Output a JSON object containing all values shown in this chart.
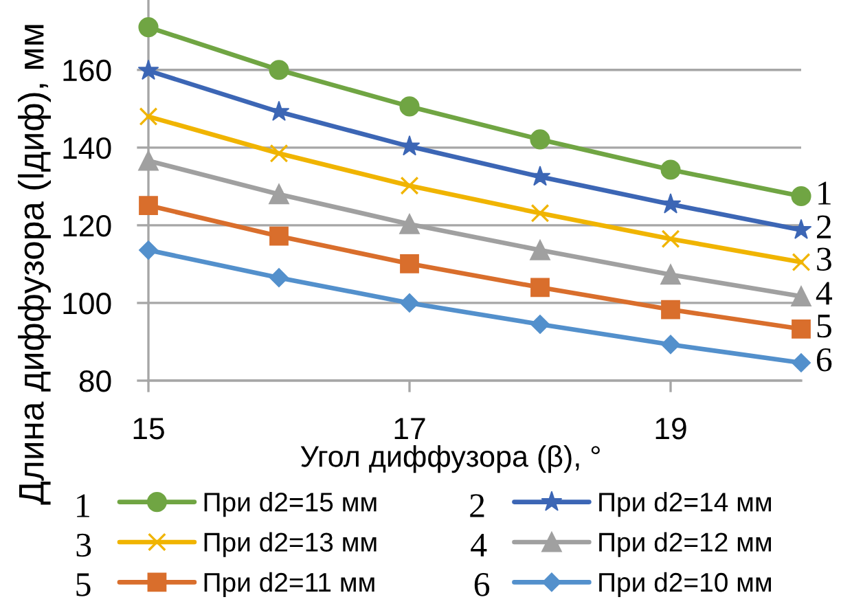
{
  "chart_data": {
    "type": "line",
    "xlabel": "Угол диффузора (β), °",
    "ylabel": "Длина диффузора (lдиф), мм",
    "x": [
      15,
      16,
      17,
      18,
      19,
      20
    ],
    "xlim": [
      15,
      20
    ],
    "xticks": [
      15,
      17,
      19
    ],
    "ylim": [
      80,
      178
    ],
    "yticks": [
      80,
      100,
      120,
      140,
      160
    ],
    "grid": "y",
    "legend": "bottom",
    "series": [
      {
        "name": "При d2=15 мм",
        "color": "#70a543",
        "marker": "circle",
        "values": [
          171,
          160,
          150.6,
          142.1,
          134.3,
          127.5
        ]
      },
      {
        "name": "При d2=14 мм",
        "color": "#3c66b5",
        "marker": "star",
        "values": [
          159.8,
          149.2,
          140.3,
          132.5,
          125.4,
          118.8
        ]
      },
      {
        "name": "При d2=13 мм",
        "color": "#f0b400",
        "marker": "cross",
        "values": [
          148,
          138.5,
          130.2,
          123.1,
          116.5,
          110.5
        ]
      },
      {
        "name": "При d2=12 мм",
        "color": "#a0a0a0",
        "marker": "triangle",
        "values": [
          136.6,
          128,
          120.3,
          113.6,
          107.3,
          101.7
        ]
      },
      {
        "name": "При d2=11 мм",
        "color": "#d96e2c",
        "marker": "square",
        "values": [
          125.1,
          117.2,
          110.1,
          104,
          98.3,
          93.3
        ]
      },
      {
        "name": "При d2=10 мм",
        "color": "#5390cc",
        "marker": "diamond",
        "values": [
          113.6,
          106.5,
          100,
          94.5,
          89.3,
          84.6
        ]
      }
    ],
    "annotations": [
      "1",
      "2",
      "3",
      "4",
      "5",
      "6",
      "1",
      "2",
      "3",
      "4",
      "5",
      "6"
    ]
  }
}
